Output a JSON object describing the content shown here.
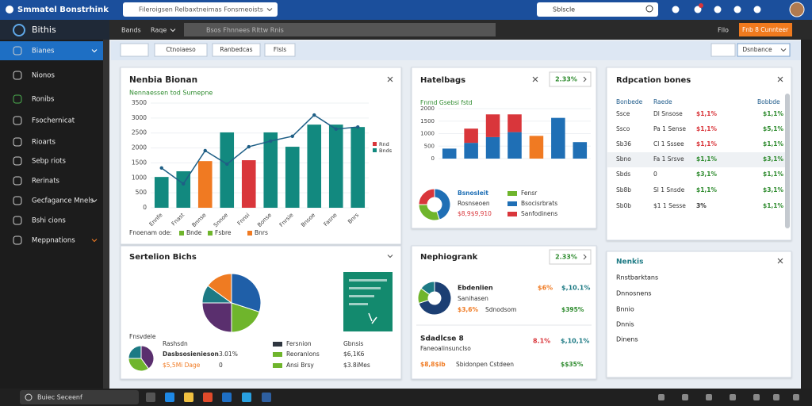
{
  "header": {
    "app_title": "Smmatel Bonstrhink",
    "search": "Fileroigsen Relbaxtneimas Fonsmeoists",
    "search2": "Sblscle"
  },
  "subbar": {
    "section": "Bithis",
    "tabs": [
      "Bands",
      "Raqe"
    ],
    "path": "Bsos Fhnnees Rlttw Rnis",
    "right": "Fllo",
    "button": "Fnb 8 Cunnteer"
  },
  "sidebar": {
    "items": [
      "Bianes",
      "Nionos",
      "Ronibs",
      "Fsochernicat",
      "Rioarts",
      "Sebp riots",
      "Rerinats",
      "Gecfagance Mnels",
      "Bshi cions",
      "Meppnations"
    ]
  },
  "toolbar": {
    "buttons": [
      "Ctnoiaeso",
      "Ranbedcas",
      "Flsls"
    ],
    "right": "Dsnbance"
  },
  "panel1": {
    "title": "Nenbia Bionan",
    "subtitle": "Nennaessen tod Sumepne",
    "chart": {
      "type": "bar",
      "categories": [
        "Ennfe",
        "Fnast",
        "Bnnse",
        "Snnoe",
        "Fnnsi",
        "Bonse",
        "Fnrsie",
        "Bnsoe",
        "Fasne",
        "Bnrs"
      ],
      "values": [
        1030,
        1220,
        1560,
        2520,
        1590,
        2520,
        2040,
        2780,
        2780,
        2700
      ],
      "colors": [
        "#12897f",
        "#12897f",
        "#f07a22",
        "#12897f",
        "#d9363b",
        "#12897f",
        "#12897f",
        "#12897f",
        "#12897f",
        "#12897f"
      ],
      "line": {
        "color": "#1f5f86",
        "values": [
          1330,
          800,
          1910,
          1460,
          2040,
          2230,
          2390,
          3100,
          2630,
          2700
        ]
      },
      "ylim": [
        0,
        3500
      ],
      "yticks": [
        0,
        500,
        1000,
        1500,
        2000,
        2500,
        3000,
        3500
      ]
    },
    "legend_title": "Fnoenam ode:",
    "legend": [
      {
        "name": "Bnde",
        "color": "#6fb52c"
      },
      {
        "name": "Fsbre",
        "color": "#6fb52c"
      },
      {
        "name": "Bnrs",
        "color": "#f07a22"
      }
    ],
    "side_legend": [
      {
        "name": "Rnd",
        "color": "#d9363b"
      },
      {
        "name": "Bnds",
        "color": "#12897f"
      }
    ]
  },
  "panel2": {
    "title": "Sertelion Bichs",
    "pie": {
      "type": "pie",
      "values": [
        30,
        20,
        25,
        10,
        15
      ],
      "colors": [
        "#1f5fa8",
        "#6fb52c",
        "#5a2f6e",
        "#1d7a84",
        "#ef7b22"
      ]
    },
    "donut": {
      "type": "donut",
      "values": [
        40,
        35,
        25
      ],
      "colors": [
        "#5a2f6e",
        "#6fb52c",
        "#1d7a84"
      ]
    },
    "caption": "Fnsvdele",
    "rows": [
      [
        "Rashsdn",
        ""
      ],
      [
        "Dasbsosienieson",
        "3.01%"
      ],
      [
        "$5,5Mi Dage",
        "0"
      ]
    ],
    "legend": [
      {
        "name": "Fersnion",
        "color": "#2f3640"
      },
      {
        "name": "Reoranlons",
        "color": "#6fb52c"
      },
      {
        "name": "Ansi Brsy",
        "color": "#6fb52c"
      }
    ],
    "right": [
      "Gbnsis",
      "$6,1K6",
      "$3.8iMes"
    ]
  },
  "panel3": {
    "title": "Hatelbags",
    "badge": "2.33%",
    "chart_title": "Fnrnd Gsebsi fstd",
    "chart": {
      "type": "bar",
      "stacked": true,
      "categories": [
        null,
        null,
        null,
        null,
        null,
        null,
        null
      ],
      "series": [
        {
          "color": "#1f6fb5",
          "values": [
            400,
            630,
            860,
            1060,
            null,
            1630,
            660
          ]
        },
        {
          "color": "#d9363b",
          "values": [
            null,
            570,
            910,
            710,
            null,
            null,
            null
          ]
        },
        {
          "color": "#f07a22",
          "values": [
            null,
            null,
            null,
            null,
            910,
            null,
            null
          ]
        }
      ],
      "ylim": [
        0,
        2000
      ],
      "yticks": [
        0,
        500,
        1000,
        1500,
        2000
      ]
    },
    "donut": {
      "type": "donut",
      "values": [
        45,
        30,
        25
      ],
      "colors": [
        "#1f6fb5",
        "#6fb52c",
        "#d9363b"
      ]
    },
    "legend_left": [
      {
        "name": "Bsnosleit",
        "color": "#1f6fb5"
      },
      {
        "name": "Rosnseoen",
        "color": "#333333"
      },
      {
        "name": "$8,9$9,910",
        "color": "#d9363b"
      }
    ],
    "legend": [
      {
        "name": "Fensr",
        "color": "#6fb52c"
      },
      {
        "name": "Bsocisrbrats",
        "color": "#1f6fb5"
      },
      {
        "name": "Sanfodinens",
        "color": "#d9363b"
      }
    ]
  },
  "panel4": {
    "title": "Nephiogrank",
    "badge": "2.33%",
    "donut": {
      "type": "donut",
      "values": [
        70,
        15,
        15
      ],
      "colors": [
        "#1c3f73",
        "#6fb52c",
        "#1d7a84"
      ]
    },
    "top": {
      "name": "Ebdenlien",
      "sub": "Sanihasen",
      "v1": "$6%",
      "v2": "$,10.1%",
      "line": [
        "$3,6%",
        "Sdnodsom",
        "$395%"
      ]
    },
    "bottom": {
      "name": "Sdadlcse 8",
      "sub": "Faneoalinsunclso",
      "v1": "8.1%",
      "v2": "$,10,1%",
      "line": [
        "$8,8$ib",
        "Sbidonpen Cstdeen",
        "$$35%"
      ]
    }
  },
  "panel5": {
    "title": "Rdpcation bones",
    "header": [
      "Bonbede",
      "Raede",
      "Bobbde"
    ],
    "rows": [
      [
        "Ssce",
        "Dl Snsose",
        "$1,1%",
        "$1,1%"
      ],
      [
        "Ssco",
        "Pa 1 Sense",
        "$1,1%",
        "$5,1%"
      ],
      [
        "Sb36",
        "Cl 1 Sssee",
        "$1,1%",
        "$1,1%"
      ],
      [
        "Sbno",
        "Fa 1 Srsve",
        "$1,1%",
        "$3,1%"
      ],
      [
        "Sbds",
        "0",
        "$3,1%",
        "$1,1%"
      ],
      [
        "Sb8b",
        "Sl 1 Snsde",
        "$1,1%",
        "$3,1%"
      ],
      [
        "Sb0b",
        "$1 1 Sesse",
        "3%",
        "$1,1%"
      ]
    ],
    "value_colors": [
      "#d9363b",
      "#d9363b",
      "#d9363b",
      "#2e8b2e",
      "#2e8b2e",
      "#2e8b2e",
      "#333333"
    ]
  },
  "panel6": {
    "title": "Nenkis",
    "items": [
      "Rnstbarktans",
      "Dnnosnens",
      "Bnnio",
      "Dnnis",
      "Dinens"
    ]
  },
  "taskbar": {
    "search": "Buiec Seceenf"
  }
}
